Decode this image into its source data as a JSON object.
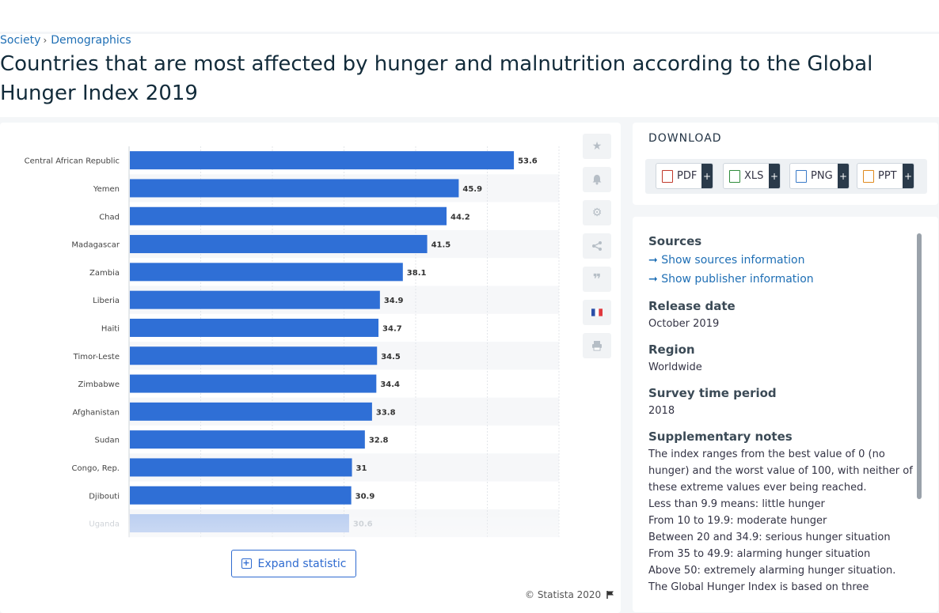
{
  "breadcrumb": {
    "item1": "Society",
    "item2": "Demographics"
  },
  "page": {
    "title_line1": "Countries that are most affected by hunger and malnutrition according to the Global",
    "title_line2": "Hunger Index 2019"
  },
  "chart": {
    "expand_label": "Expand statistic",
    "copyright": "© Statista 2020"
  },
  "chart_data": {
    "type": "bar",
    "orientation": "horizontal",
    "categories": [
      "Central African Republic",
      "Yemen",
      "Chad",
      "Madagascar",
      "Zambia",
      "Liberia",
      "Haiti",
      "Timor-Leste",
      "Zimbabwe",
      "Afghanistan",
      "Sudan",
      "Congo, Rep.",
      "Djibouti",
      "Uganda"
    ],
    "values": [
      53.6,
      45.9,
      44.2,
      41.5,
      38.1,
      34.9,
      34.7,
      34.5,
      34.4,
      33.8,
      32.8,
      31,
      30.9,
      30.6
    ],
    "value_labels": [
      "53.6",
      "45.9",
      "44.2",
      "41.5",
      "38.1",
      "34.9",
      "34.7",
      "34.5",
      "34.4",
      "33.8",
      "32.8",
      "31",
      "30.9",
      "30.6"
    ],
    "xlim": [
      0,
      60
    ],
    "grid": true,
    "bar_color": "#2f6fd6"
  },
  "side_icons": [
    "star-icon",
    "bell-icon",
    "gear-icon",
    "share-icon",
    "quote-icon",
    "french-flag-icon",
    "print-icon"
  ],
  "download": {
    "title": "DOWNLOAD",
    "buttons": [
      "PDF",
      "XLS",
      "PNG",
      "PPT"
    ],
    "plus": "+"
  },
  "info": {
    "sources_title": "Sources",
    "sources_link": "Show sources information",
    "publisher_link": "Show publisher information",
    "release_title": "Release date",
    "release_value": "October 2019",
    "region_title": "Region",
    "region_value": "Worldwide",
    "survey_title": "Survey time period",
    "survey_value": "2018",
    "notes_title": "Supplementary notes",
    "notes": [
      "The index ranges from the best value of 0 (no",
      "hunger) and the worst value of 100, with neither of",
      "these extreme values ever being reached.",
      "Less than 9.9 means: little hunger",
      "From 10 to 19.9: moderate hunger",
      "Between 20 and 34.9: serious hunger situation",
      "From 35 to 49.9: alarming hunger situation",
      "Above 50: extremely alarming hunger situation.",
      "The Global Hunger Index is based on three"
    ]
  }
}
